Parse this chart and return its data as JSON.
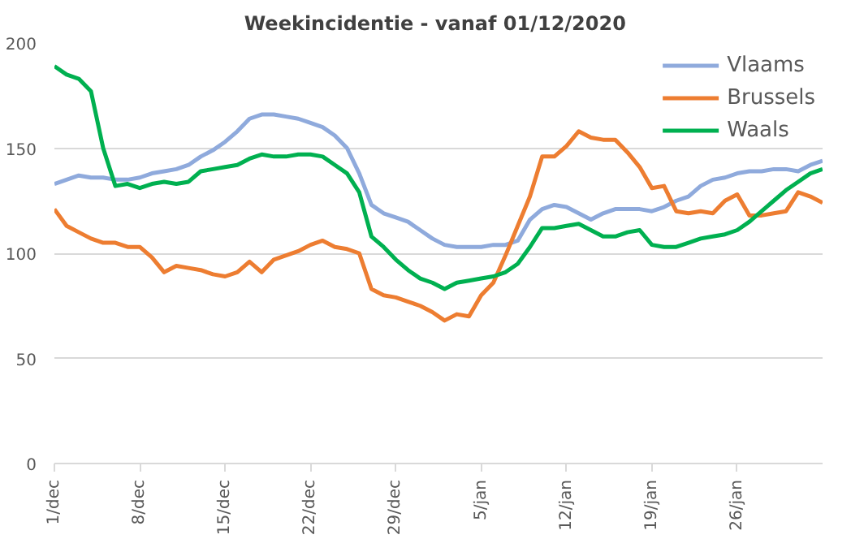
{
  "chart_data": {
    "type": "line",
    "title": "Weekincidentie  - vanaf 01/12/2020",
    "x": [
      "2020-12-01",
      "2020-12-02",
      "2020-12-03",
      "2020-12-04",
      "2020-12-05",
      "2020-12-06",
      "2020-12-07",
      "2020-12-08",
      "2020-12-09",
      "2020-12-10",
      "2020-12-11",
      "2020-12-12",
      "2020-12-13",
      "2020-12-14",
      "2020-12-15",
      "2020-12-16",
      "2020-12-17",
      "2020-12-18",
      "2020-12-19",
      "2020-12-20",
      "2020-12-21",
      "2020-12-22",
      "2020-12-23",
      "2020-12-24",
      "2020-12-25",
      "2020-12-26",
      "2020-12-27",
      "2020-12-28",
      "2020-12-29",
      "2020-12-30",
      "2020-12-31",
      "2021-01-01",
      "2021-01-02",
      "2021-01-03",
      "2021-01-04",
      "2021-01-05",
      "2021-01-06",
      "2021-01-07",
      "2021-01-08",
      "2021-01-09",
      "2021-01-10",
      "2021-01-11",
      "2021-01-12",
      "2021-01-13",
      "2021-01-14",
      "2021-01-15",
      "2021-01-16",
      "2021-01-17",
      "2021-01-18",
      "2021-01-19",
      "2021-01-20",
      "2021-01-21",
      "2021-01-22",
      "2021-01-23",
      "2021-01-24",
      "2021-01-25",
      "2021-01-26",
      "2021-01-27",
      "2021-01-28",
      "2021-01-29",
      "2021-01-30",
      "2021-01-31",
      "2021-02-01",
      "2021-02-02"
    ],
    "series": [
      {
        "name": "Vlaams",
        "color": "#8faadc",
        "values": [
          133,
          135,
          137,
          136,
          136,
          135,
          135,
          136,
          138,
          139,
          140,
          142,
          146,
          149,
          153,
          158,
          164,
          166,
          166,
          165,
          164,
          162,
          160,
          156,
          150,
          138,
          123,
          119,
          117,
          115,
          111,
          107,
          104,
          103,
          103,
          103,
          104,
          104,
          106,
          116,
          121,
          123,
          122,
          119,
          116,
          119,
          121,
          121,
          121,
          120,
          122,
          125,
          127,
          132,
          135,
          136,
          138,
          139,
          139,
          140,
          140,
          139,
          142,
          144
        ]
      },
      {
        "name": "Brussels",
        "color": "#ed7d31",
        "values": [
          121,
          113,
          110,
          107,
          105,
          105,
          103,
          103,
          98,
          91,
          94,
          93,
          92,
          90,
          89,
          91,
          96,
          91,
          97,
          99,
          101,
          104,
          106,
          103,
          102,
          100,
          83,
          80,
          79,
          77,
          75,
          72,
          68,
          71,
          70,
          80,
          86,
          99,
          113,
          127,
          146,
          146,
          151,
          158,
          155,
          154,
          154,
          148,
          141,
          131,
          132,
          120,
          119,
          120,
          119,
          125,
          128,
          118,
          118,
          119,
          120,
          129,
          127,
          124
        ]
      },
      {
        "name": "Waals",
        "color": "#00b050",
        "values": [
          189,
          185,
          183,
          177,
          150,
          132,
          133,
          131,
          133,
          134,
          133,
          134,
          139,
          140,
          141,
          142,
          145,
          147,
          146,
          146,
          147,
          147,
          146,
          142,
          138,
          129,
          108,
          103,
          97,
          92,
          88,
          86,
          83,
          86,
          87,
          88,
          89,
          91,
          95,
          103,
          112,
          112,
          113,
          114,
          111,
          108,
          108,
          110,
          111,
          104,
          103,
          103,
          105,
          107,
          108,
          109,
          111,
          115,
          120,
          125,
          130,
          134,
          138,
          140
        ]
      }
    ],
    "xlim": [
      "2020-12-01",
      "2021-02-02"
    ],
    "xticks": [
      {
        "value": "2020-12-01",
        "label": "1/dec"
      },
      {
        "value": "2020-12-08",
        "label": "8/dec"
      },
      {
        "value": "2020-12-15",
        "label": "15/dec"
      },
      {
        "value": "2020-12-22",
        "label": "22/dec"
      },
      {
        "value": "2020-12-29",
        "label": "29/dec"
      },
      {
        "value": "2021-01-05",
        "label": "5/jan"
      },
      {
        "value": "2021-01-12",
        "label": "12/jan"
      },
      {
        "value": "2021-01-19",
        "label": "19/jan"
      },
      {
        "value": "2021-01-26",
        "label": "26/jan"
      }
    ],
    "ylim": [
      0,
      200
    ],
    "yticks": [
      0,
      50,
      100,
      150,
      200
    ],
    "grid": "y",
    "legend": "top right",
    "marker": "none",
    "line_style": "solid"
  }
}
